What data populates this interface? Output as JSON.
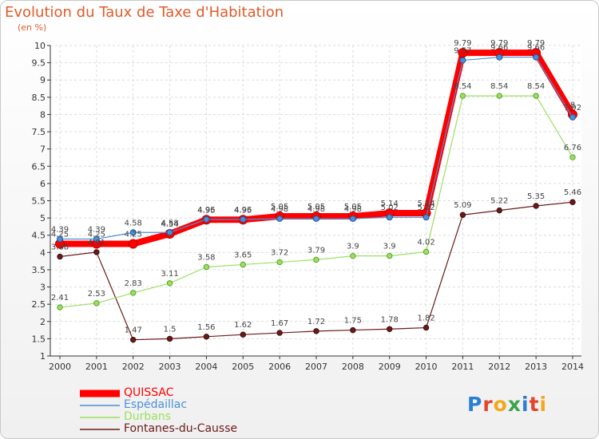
{
  "title": "Evolution du Taux de Taxe d'Habitation",
  "subtitle": "(en %)",
  "logo": "Proxiti",
  "colors": {
    "QUISSAC": "#ff0000",
    "Espédaillac": "#4a90d9",
    "Durbans": "#9be060",
    "Fontanes-du-Causse": "#6b1a1a"
  },
  "chart_data": {
    "type": "line",
    "title": "Evolution du Taux de Taxe d'Habitation",
    "ylabel": "(en %)",
    "xlabel": "",
    "x": [
      2000,
      2001,
      2002,
      2003,
      2004,
      2005,
      2006,
      2007,
      2008,
      2009,
      2010,
      2011,
      2012,
      2013,
      2014
    ],
    "ylim": [
      1,
      10
    ],
    "yticks": [
      1,
      1.5,
      2,
      2.5,
      3,
      3.5,
      4,
      4.5,
      5,
      5.5,
      6,
      6.5,
      7,
      7.5,
      8,
      8.5,
      9,
      9.5,
      10
    ],
    "grid": true,
    "legend_position": "bottom-left",
    "series": [
      {
        "name": "QUISSAC",
        "values": [
          4.25,
          4.25,
          4.25,
          4.54,
          4.95,
          4.95,
          5.05,
          5.05,
          5.05,
          5.14,
          5.14,
          9.79,
          9.79,
          9.79,
          8.0
        ],
        "labels": [
          "4.25",
          "4.25",
          "4.25",
          "4.54",
          "4.95",
          "4.95",
          "5.05",
          "5.05",
          "5.05",
          "5.14",
          "5.14",
          "9.79",
          "9.79",
          "9.79",
          "8"
        ]
      },
      {
        "name": "Espédaillac",
        "values": [
          4.39,
          4.39,
          4.58,
          4.58,
          4.96,
          4.96,
          4.98,
          4.98,
          4.98,
          5.02,
          5.02,
          9.57,
          9.66,
          9.66,
          7.92
        ],
        "labels": [
          "4.39",
          "4.39",
          "4.58",
          "4.58",
          "4.96",
          "4.96",
          "4.98",
          "4.98",
          "4.98",
          "5.02",
          "5.02",
          "9.57",
          "9.66",
          "9.66",
          "7.92"
        ]
      },
      {
        "name": "Durbans",
        "values": [
          2.41,
          2.53,
          2.83,
          3.11,
          3.58,
          3.65,
          3.72,
          3.79,
          3.9,
          3.9,
          4.02,
          8.54,
          8.54,
          8.54,
          6.76
        ],
        "labels": [
          "2.41",
          "2.53",
          "2.83",
          "3.11",
          "3.58",
          "3.65",
          "3.72",
          "3.79",
          "3.9",
          "3.9",
          "4.02",
          "8.54",
          "8.54",
          "8.54",
          "6.76"
        ]
      },
      {
        "name": "Fontanes-du-Causse",
        "values": [
          3.88,
          4.01,
          1.47,
          1.5,
          1.56,
          1.62,
          1.67,
          1.72,
          1.75,
          1.78,
          1.82,
          5.09,
          5.22,
          5.35,
          5.46
        ],
        "labels": [
          "3.88",
          "4.01",
          "1.47",
          "1.5",
          "1.56",
          "1.62",
          "1.67",
          "1.72",
          "1.75",
          "1.78",
          "1.82",
          "5.09",
          "5.22",
          "5.35",
          "5.46"
        ]
      }
    ]
  }
}
